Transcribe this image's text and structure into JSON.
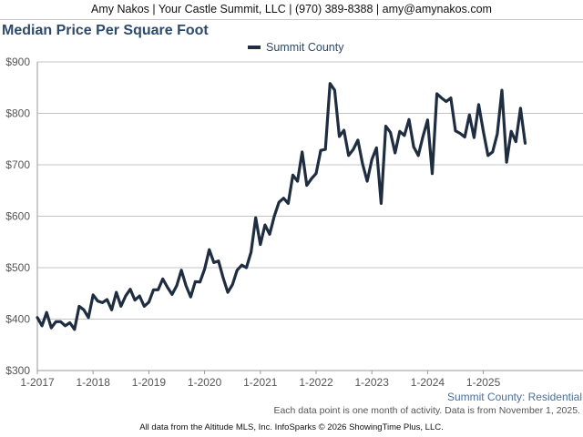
{
  "header": {
    "contact": "Amy Nakos | Your Castle Summit, LLC | (970) 389-8388 | amy@amynakos.com"
  },
  "chart_data": {
    "type": "line",
    "title": "Median Price Per Square Foot",
    "subtitle_right": "Summit County: Residential",
    "note": "Each data point is one month of activity. Data is from November 1, 2025.",
    "footer": "All data from the Altitude MLS, Inc. InfoSparks © 2026 ShowingTime Plus, LLC.",
    "x_start": "2017-01",
    "x_tick_labels": [
      "1-2017",
      "1-2018",
      "1-2019",
      "1-2020",
      "1-2021",
      "1-2022",
      "1-2023",
      "1-2024",
      "1-2025"
    ],
    "y_tick_labels": [
      "$300",
      "$400",
      "$500",
      "$600",
      "$700",
      "$800",
      "$900"
    ],
    "ylim": [
      300,
      900
    ],
    "grid": true,
    "legend_position": "top-center",
    "series": [
      {
        "name": "Summit County",
        "color": "#1f2d40",
        "values": [
          403,
          387,
          413,
          383,
          395,
          395,
          387,
          393,
          380,
          425,
          418,
          403,
          447,
          435,
          432,
          438,
          418,
          452,
          425,
          445,
          458,
          437,
          445,
          425,
          433,
          457,
          457,
          478,
          462,
          448,
          465,
          495,
          465,
          443,
          473,
          472,
          497,
          535,
          510,
          513,
          480,
          452,
          467,
          495,
          505,
          500,
          530,
          597,
          545,
          583,
          565,
          600,
          627,
          635,
          625,
          680,
          668,
          725,
          660,
          673,
          683,
          728,
          730,
          858,
          845,
          755,
          767,
          718,
          730,
          748,
          702,
          668,
          710,
          733,
          625,
          775,
          763,
          723,
          765,
          757,
          788,
          735,
          718,
          755,
          787,
          683,
          838,
          830,
          823,
          830,
          766,
          761,
          754,
          797,
          753,
          817,
          765,
          718,
          725,
          760,
          845,
          705,
          765,
          745,
          810,
          742
        ]
      }
    ]
  }
}
